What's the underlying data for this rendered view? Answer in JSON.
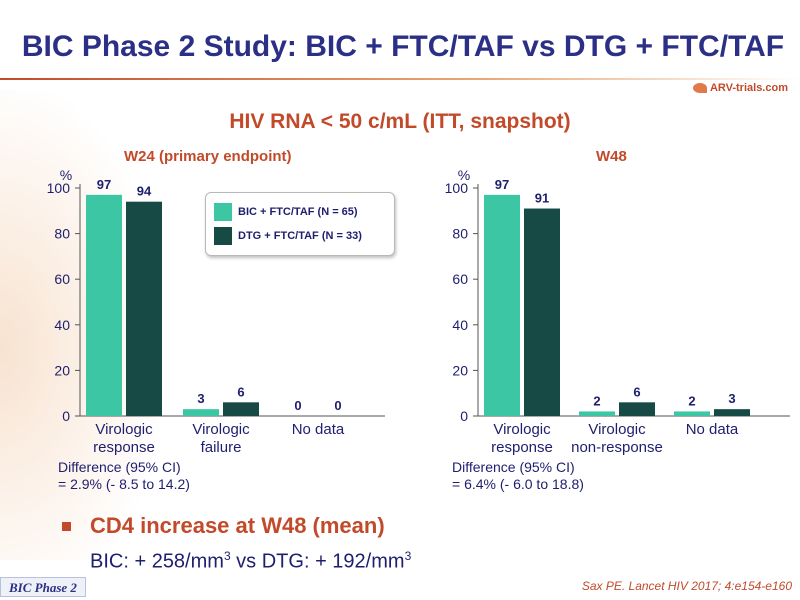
{
  "header": {
    "title": "BIC Phase 2 Study: BIC + FTC/TAF vs DTG + FTC/TAF",
    "logo_text": "ARV-trials.com"
  },
  "subtitle": "HIV RNA < 50 c/mL (ITT, snapshot)",
  "legend": {
    "items": [
      {
        "label": "BIC + FTC/TAF (N = 65)",
        "color": "#3cc6a4"
      },
      {
        "label": "DTG + FTC/TAF (N = 33)",
        "color": "#174a45"
      }
    ]
  },
  "colors": {
    "bic": "#3cc6a4",
    "dtg": "#174a45",
    "accent": "#c24a2a",
    "title": "#2b2f86"
  },
  "chart_data": [
    {
      "type": "bar",
      "title": "W24 (primary endpoint)",
      "ylabel": "%",
      "ylim": [
        0,
        100
      ],
      "yticks": [
        0,
        20,
        40,
        60,
        80,
        100
      ],
      "categories": [
        [
          "Virologic",
          "response"
        ],
        [
          "Virologic",
          "failure"
        ],
        [
          "No data"
        ]
      ],
      "series": [
        {
          "name": "BIC + FTC/TAF (N = 65)",
          "values": [
            97,
            3,
            0
          ]
        },
        {
          "name": "DTG + FTC/TAF (N = 33)",
          "values": [
            94,
            6,
            0
          ]
        }
      ],
      "annotation": [
        "Difference (95% CI)",
        "= 2.9% (- 8.5 to 14.2)"
      ]
    },
    {
      "type": "bar",
      "title": "W48",
      "ylabel": "%",
      "ylim": [
        0,
        100
      ],
      "yticks": [
        0,
        20,
        40,
        60,
        80,
        100
      ],
      "categories": [
        [
          "Virologic",
          "response"
        ],
        [
          "Virologic",
          "non-response"
        ],
        [
          "No data"
        ]
      ],
      "series": [
        {
          "name": "BIC + FTC/TAF (N = 65)",
          "values": [
            97,
            2,
            2
          ]
        },
        {
          "name": "DTG + FTC/TAF (N = 33)",
          "values": [
            91,
            6,
            3
          ]
        }
      ],
      "annotation": [
        "Difference (95% CI)",
        "= 6.4% (- 6.0 to 18.8)"
      ]
    }
  ],
  "bullet": {
    "heading": "CD4 increase at W48 (mean)",
    "text_prefix": "BIC: + 258/mm",
    "text_sup1": "3",
    "text_middle": " vs DTG: + 192/mm",
    "text_sup2": "3"
  },
  "footer": {
    "tag": "BIC Phase 2",
    "citation": "Sax PE. Lancet HIV 2017; 4:e154-e160"
  }
}
